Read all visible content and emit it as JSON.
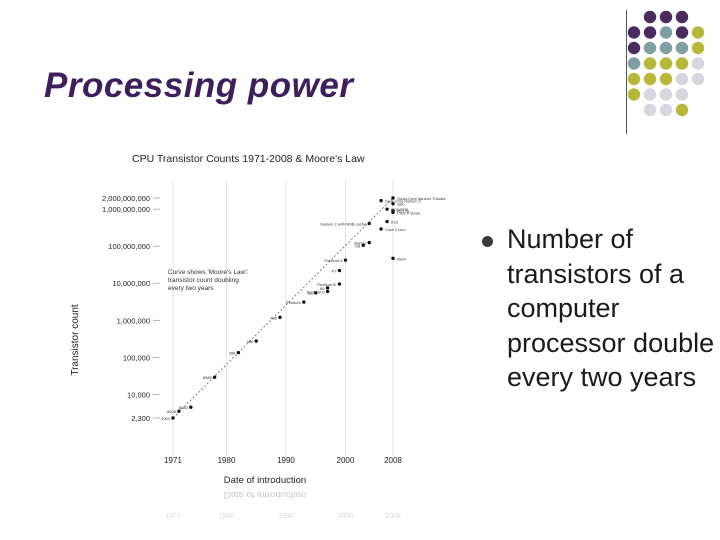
{
  "slide": {
    "title": "Processing power",
    "bullet": "Number of transistors of a computer processor double every two years"
  },
  "decoration": {
    "colors": {
      "purple": "#4b2b5e",
      "teal": "#7f9ea2",
      "olive": "#b7b73a",
      "light": "#d6d6e0"
    }
  },
  "chart_data": {
    "type": "scatter",
    "title": "CPU Transistor Counts 1971-2008 & Moore's Law",
    "xlabel": "Date of introduction",
    "ylabel": "Transistor count",
    "x_ticks": [
      "1971",
      "1980",
      "1990",
      "2000",
      "2008"
    ],
    "y_ticks": [
      "2,000,000,000",
      "1,000,000,000",
      "100,000,000",
      "10,000,000",
      "1,000,000",
      "100,000",
      "10,000",
      "2,300"
    ],
    "annotation": "Curve shows 'Moore's Law': transistor count doubling every two years",
    "xlim": [
      1971,
      2008
    ],
    "ylim": [
      2300,
      2000000000
    ],
    "y_scale": "log",
    "points": [
      {
        "x": 1971,
        "y": 2300,
        "label": "4004"
      },
      {
        "x": 1972,
        "y": 3500,
        "label": "8008"
      },
      {
        "x": 1974,
        "y": 4500,
        "label": "8080"
      },
      {
        "x": 1978,
        "y": 29000,
        "label": "8088"
      },
      {
        "x": 1982,
        "y": 134000,
        "label": "286"
      },
      {
        "x": 1985,
        "y": 275000,
        "label": "386"
      },
      {
        "x": 1989,
        "y": 1200000,
        "label": "486"
      },
      {
        "x": 1993,
        "y": 3100000,
        "label": "Pentium"
      },
      {
        "x": 1995,
        "y": 5500000,
        "label": "K5"
      },
      {
        "x": 1997,
        "y": 7500000,
        "label": "K6"
      },
      {
        "x": 1997,
        "y": 6000000,
        "label": "Pentium II"
      },
      {
        "x": 1999,
        "y": 9500000,
        "label": "Pentium III"
      },
      {
        "x": 1999,
        "y": 22000000,
        "label": "K7"
      },
      {
        "x": 2000,
        "y": 42000000,
        "label": "Pentium 4"
      },
      {
        "x": 2003,
        "y": 105900000,
        "label": "K8"
      },
      {
        "x": 2004,
        "y": 125000000,
        "label": "Barton"
      },
      {
        "x": 2006,
        "y": 291000000,
        "label": "Core 2 Duo"
      },
      {
        "x": 2008,
        "y": 47000000,
        "label": "Atom"
      },
      {
        "x": 2007,
        "y": 463000000,
        "label": "K10"
      },
      {
        "x": 2008,
        "y": 820000000,
        "label": "Core 2 Quad"
      },
      {
        "x": 2004,
        "y": 410000000,
        "label": "Itanium 2 with 9MB cache"
      },
      {
        "x": 2006,
        "y": 1700000000,
        "label": "Dual-Core Itanium 2"
      },
      {
        "x": 2008,
        "y": 2000000000,
        "label": "Quad-Core Itanium Tukwila"
      },
      {
        "x": 2008,
        "y": 1400000000,
        "label": "G80"
      },
      {
        "x": 2007,
        "y": 1000000000,
        "label": "POWER6"
      },
      {
        "x": 2008,
        "y": 900000000,
        "label": "RV770"
      }
    ]
  }
}
